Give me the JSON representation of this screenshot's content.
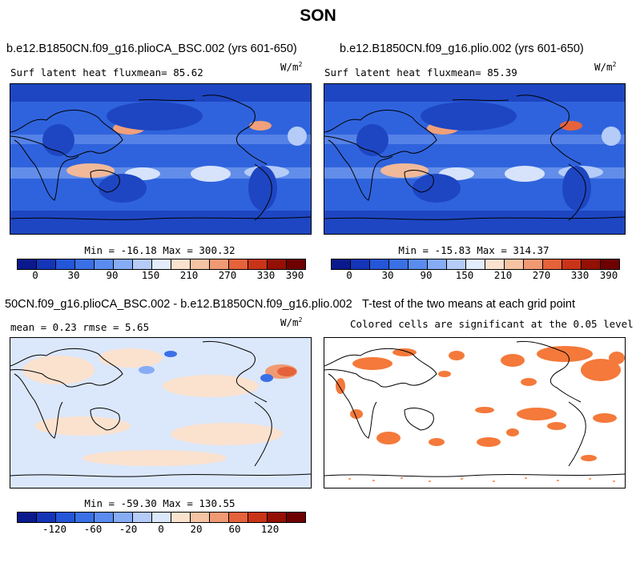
{
  "figure": {
    "title": "SON"
  },
  "colors": {
    "abs_scale": [
      "#0a1a8c",
      "#1435b8",
      "#2456d8",
      "#3a70e6",
      "#5a8cf0",
      "#86acf5",
      "#b5ccf8",
      "#e2ecfb",
      "#fbe2cf",
      "#f6c4a4",
      "#f09a74",
      "#e5623a",
      "#c93418",
      "#941004",
      "#6e0000"
    ],
    "diff_scale": [
      "#0a1a8c",
      "#1435b8",
      "#2456d8",
      "#3a70e6",
      "#5a8cf0",
      "#86acf5",
      "#b5ccf8",
      "#dbe7fa",
      "#fbe2cf",
      "#f6c4a4",
      "#f09a74",
      "#e5623a",
      "#c93418",
      "#941004",
      "#6e0000"
    ],
    "significant": "#f4793a",
    "land_line": "#000000"
  },
  "panels": {
    "tl": {
      "title": "b.e12.B1850CN.f09_g16.plioCA_BSC.002 (yrs 601-650)",
      "subtitle": "Surf latent heat fluxmean=   85.62",
      "units": "W/m",
      "units_exp": "2",
      "stats": "Min = -16.18 Max = 300.32"
    },
    "tr": {
      "title": "b.e12.B1850CN.f09_g16.plio.002 (yrs 601-650)",
      "subtitle": "Surf latent heat fluxmean=   85.39",
      "units": "W/m",
      "units_exp": "2",
      "stats": "Min = -15.83 Max = 314.37"
    },
    "bl": {
      "title": "50CN.f09_g16.plioCA_BSC.002 - b.e12.B1850CN.f09_g16.plio.002",
      "subtitle": "mean =    0.23    rmse =    5.65",
      "units": "W/m",
      "units_exp": "2",
      "stats": "Min = -59.30 Max = 130.55"
    },
    "br": {
      "title": "T-test of the two means at each grid point",
      "subtitle": "Colored cells are significant at the 0.05 level"
    }
  },
  "colorbars": {
    "abs_ticks": [
      "0",
      "30",
      "90",
      "150",
      "210",
      "270",
      "330",
      "390"
    ],
    "diff_ticks": [
      "-120",
      "-60",
      "-20",
      "0",
      "20",
      "60",
      "120"
    ]
  }
}
